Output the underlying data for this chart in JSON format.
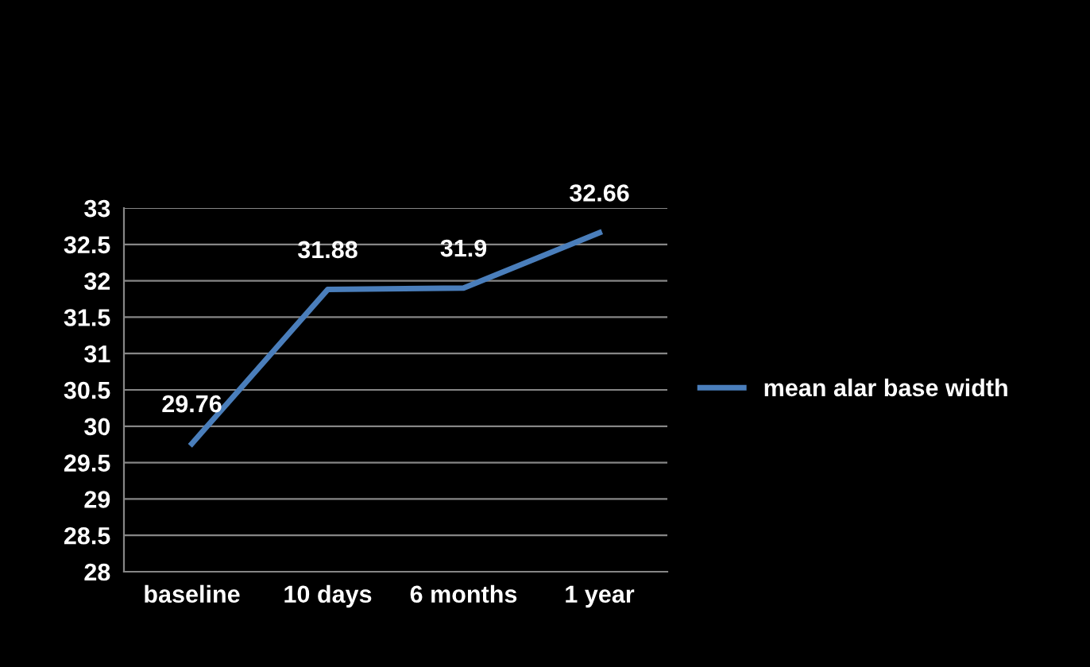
{
  "chart_data": {
    "type": "line",
    "categories": [
      "baseline",
      "10 days",
      "6 months",
      "1 year"
    ],
    "series": [
      {
        "name": "mean alar base width",
        "color": "#4a7ebb",
        "values": [
          29.76,
          31.88,
          31.9,
          32.66
        ]
      }
    ],
    "ylim": [
      28,
      33
    ],
    "yticks": [
      28,
      28.5,
      29,
      29.5,
      30,
      30.5,
      31,
      31.5,
      32,
      32.5,
      33
    ],
    "grid": "y",
    "legend": "right",
    "data_labels": true,
    "marker": "none",
    "line_style": "solid"
  }
}
